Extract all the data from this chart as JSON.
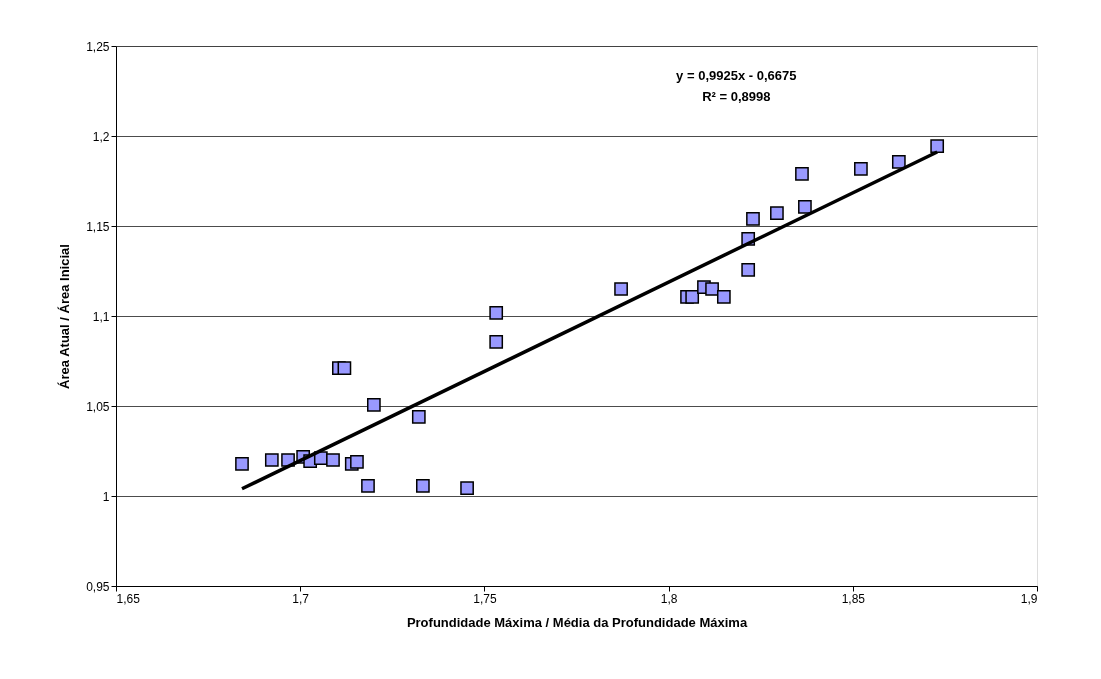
{
  "chart_data": {
    "type": "scatter",
    "xlabel": "Profundidade Máxima / Média da Profundidade Máxima",
    "ylabel": "Área Atual / Área Inicial",
    "annotations": [
      "y = 0,9925x - 0,6675",
      "R² = 0,8998"
    ],
    "xlim": [
      1.65,
      1.9
    ],
    "xticks": [
      {
        "value": 1.65,
        "label": "1,65"
      },
      {
        "value": 1.7,
        "label": "1,7"
      },
      {
        "value": 1.75,
        "label": "1,75"
      },
      {
        "value": 1.8,
        "label": "1,8"
      },
      {
        "value": 1.85,
        "label": "1,85"
      },
      {
        "value": 1.9,
        "label": "1,9"
      }
    ],
    "ylim": [
      0.95,
      1.25
    ],
    "yticks": [
      {
        "value": 0.95,
        "label": "0,95"
      },
      1,
      {
        "value": 1.05,
        "label": "1,05"
      },
      {
        "value": 1.1,
        "label": "1,1"
      },
      {
        "value": 1.15,
        "label": "1,15"
      },
      {
        "value": 1.2,
        "label": "1,2"
      },
      {
        "value": 1.25,
        "label": "1,25"
      }
    ],
    "grid": "y",
    "series": [
      {
        "color": "#9999ff",
        "marker": "square",
        "x": [
          1.6842,
          1.6923,
          1.6967,
          1.7008,
          1.7027,
          1.7056,
          1.7089,
          1.714,
          1.7154,
          1.7184,
          1.7333,
          1.7453,
          1.72,
          1.7322,
          1.7105,
          1.712,
          1.7532,
          1.7532,
          1.7871,
          1.805,
          1.8064,
          1.8096,
          1.8118,
          1.815,
          1.8216,
          1.8216,
          1.8229,
          1.8294,
          1.8362,
          1.837,
          1.8522,
          1.8625,
          1.8729
        ],
        "values": [
          1.0178,
          1.02,
          1.02,
          1.0217,
          1.0194,
          1.0211,
          1.02,
          1.0178,
          1.019,
          1.0056,
          1.0056,
          1.0044,
          1.0506,
          1.0439,
          1.071,
          1.071,
          1.1017,
          1.0856,
          1.115,
          1.1106,
          1.1106,
          1.1161,
          1.115,
          1.1106,
          1.1256,
          1.1428,
          1.1539,
          1.1572,
          1.1789,
          1.1606,
          1.1817,
          1.1856,
          1.1944
        ]
      },
      {
        "type": "line",
        "color": "#000000",
        "line_style": "solid",
        "x": [
          1.6842,
          1.8729
        ],
        "values": [
          1.004,
          1.1911
        ]
      }
    ]
  }
}
